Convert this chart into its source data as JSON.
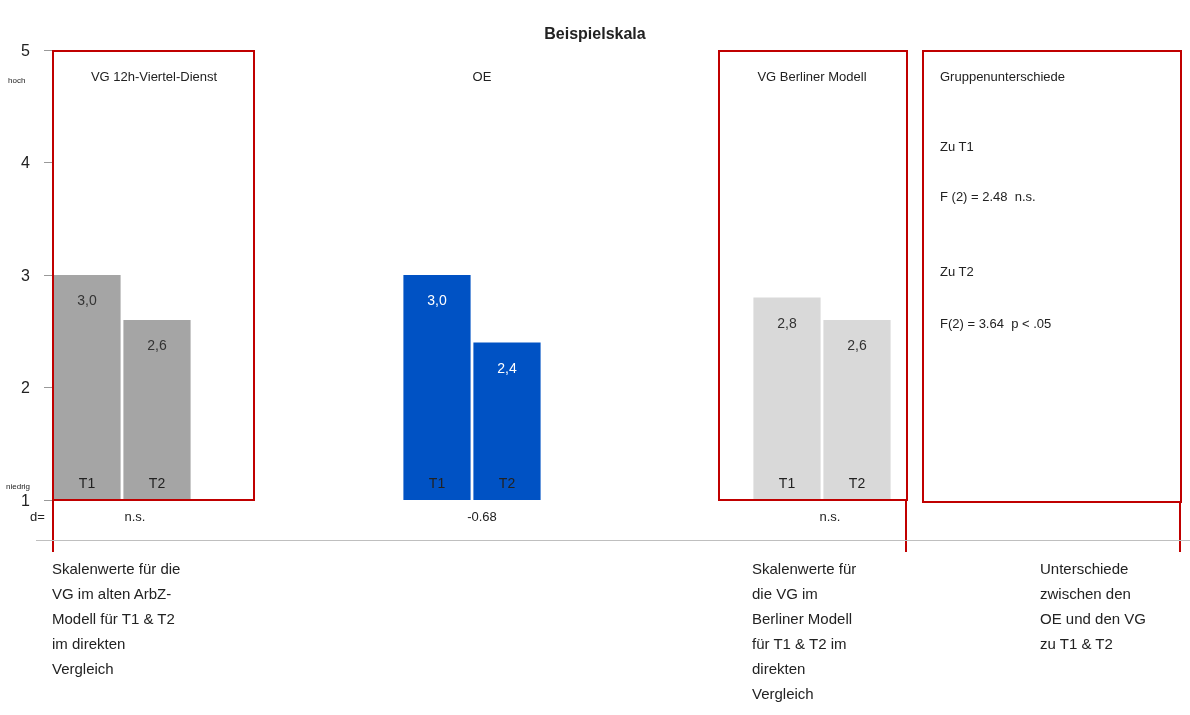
{
  "chart_data": {
    "type": "bar",
    "title": "Beispielskala",
    "categories": [
      "T1",
      "T2",
      null,
      null,
      null,
      "T1",
      "T2",
      null,
      null,
      null,
      "T1",
      "T2"
    ],
    "values": [
      3.0,
      2.6,
      null,
      null,
      null,
      3.0,
      2.4,
      null,
      null,
      null,
      2.8,
      2.6
    ],
    "value_labels": [
      "3,0",
      "2,6",
      null,
      null,
      null,
      "3,0",
      "2,4",
      null,
      null,
      null,
      "2,8",
      "2,6"
    ],
    "colors": [
      "#a5a5a5",
      "#a5a5a5",
      null,
      null,
      null,
      "#0052c4",
      "#0052c4",
      null,
      null,
      null,
      "#d9d9d9",
      "#d9d9d9"
    ],
    "ylim": [
      1,
      5
    ],
    "yticks": [
      1,
      2,
      3,
      4,
      5
    ],
    "grid": false,
    "annotations": [
      "VG 12h-Viertel-Dienst",
      "OE",
      "VG Berliner Modell",
      "Gruppenunterschiede",
      "Zu T1",
      "F (2) = 2.48  n.s.",
      "Zu T2",
      "F(2) = 3.64  p < .05",
      "d=",
      "n.s.",
      "-0.68",
      "n.s.",
      "Skalenwerte für die\nVG im alten ArbZ-\nModell für T1 & T2\nim direkten\nVergleich",
      "Skalenwerte für\ndie VG im\nBerliner Modell\nfür T1 & T2 im\ndirekten\nVergleich",
      "Unterschiede\nzwischen den\nOE und den VG\nzu T1 & T2",
      "hoch",
      "niedrig"
    ]
  }
}
